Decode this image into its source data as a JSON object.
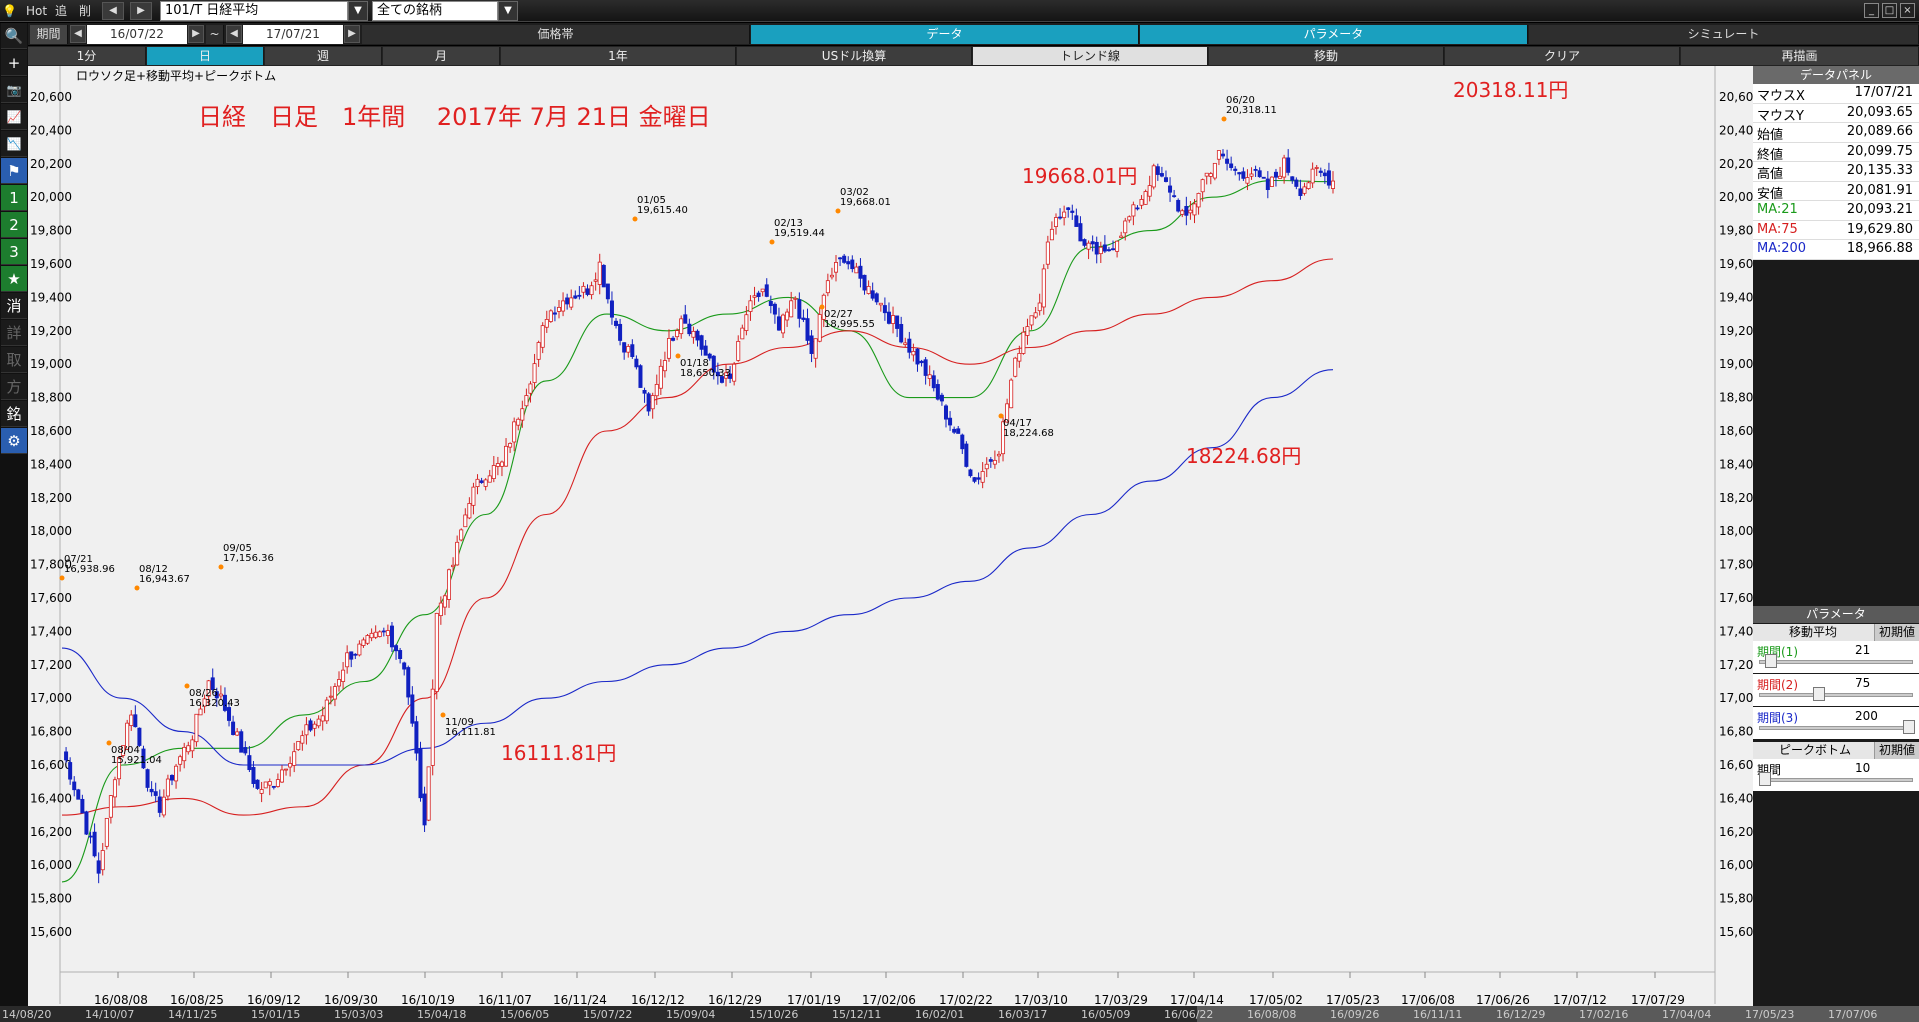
{
  "topbar": {
    "hot": "Hot",
    "nav1": "追",
    "nav2": "削",
    "symbol": "101/T 日経平均",
    "market": "全ての銘柄"
  },
  "row2": {
    "period_label": "期間",
    "date_from": "16/07/22",
    "tilde": "~",
    "date_to": "17/07/21",
    "tabs": [
      "価格帯",
      "データ",
      "パラメータ",
      "シミュレート"
    ]
  },
  "row3": {
    "cells": [
      "1分",
      "日",
      "週",
      "月",
      "1年",
      "USドル換算",
      "トレンド線",
      "移動",
      "クリア",
      "再描画"
    ]
  },
  "lefttool": {
    "buttons": [
      "🔍",
      "+",
      "📷",
      "📈",
      "📉",
      "⚑",
      "1",
      "2",
      "3",
      "★",
      "消",
      "詳",
      "取",
      "方",
      "銘",
      "⚙"
    ]
  },
  "chart": {
    "label": "ロウソク足+移動平均+ピークボトム",
    "headline": "日経　日足　1年間　 2017年 7月 21日 金曜日",
    "y_ticks": [
      "20,600",
      "20,400",
      "20,200",
      "20,000",
      "19,800",
      "19,600",
      "19,400",
      "19,200",
      "19,000",
      "18,800",
      "18,600",
      "18,400",
      "18,200",
      "18,000",
      "17,800",
      "17,600",
      "17,400",
      "17,200",
      "17,000",
      "16,800",
      "16,600",
      "16,400",
      "16,200",
      "16,000",
      "15,800",
      "15,600"
    ],
    "x_ticks": [
      "16/08/08",
      "16/08/25",
      "16/09/12",
      "16/09/30",
      "16/10/19",
      "16/11/07",
      "16/11/24",
      "16/12/12",
      "16/12/29",
      "17/01/19",
      "17/02/06",
      "17/02/22",
      "17/03/10",
      "17/03/29",
      "17/04/14",
      "17/05/02",
      "17/05/23",
      "17/06/08",
      "17/06/26",
      "17/07/12",
      "17/07/29"
    ],
    "peaks": [
      {
        "date": "07/21",
        "value": "16,938.96"
      },
      {
        "date": "08/04",
        "value": "15,921.04"
      },
      {
        "date": "08/12",
        "value": "16,943.67"
      },
      {
        "date": "08/26",
        "value": "16,320.43"
      },
      {
        "date": "09/05",
        "value": "17,156.36"
      },
      {
        "date": "11/09",
        "value": "16,111.81"
      },
      {
        "date": "01/05",
        "value": "19,615.40"
      },
      {
        "date": "01/18",
        "value": "18,650.33"
      },
      {
        "date": "02/13",
        "value": "19,519.44"
      },
      {
        "date": "02/27",
        "value": "18,995.55"
      },
      {
        "date": "03/02",
        "value": "19,668.01"
      },
      {
        "date": "04/17",
        "value": "18,224.68"
      },
      {
        "date": "06/20",
        "value": "20,318.11"
      }
    ],
    "big_labels": [
      "20318.11円",
      "19668.01円",
      "18224.68円",
      "16111.81円"
    ],
    "colors": {
      "up": "#d62020",
      "down": "#1020c0",
      "ma21": "#1a9a1a",
      "ma75": "#d62020",
      "ma200": "#1a28c8",
      "peak_dot": "#ff8800"
    }
  },
  "chart_data": {
    "type": "line",
    "title": "日経　日足　1年間　 2017年 7月 21日 金曜日",
    "ylim": [
      15500,
      20700
    ],
    "series": [
      {
        "name": "MA:21",
        "values": [
          15900,
          16600,
          16700,
          16700,
          16900,
          17100,
          17500,
          18100,
          18900,
          19300,
          19200,
          19300,
          19400,
          19200,
          18800,
          18800,
          19200,
          19700,
          19800,
          20000,
          20100,
          20093
        ]
      },
      {
        "name": "MA:75",
        "values": [
          16300,
          16350,
          16400,
          16300,
          16350,
          16600,
          17000,
          17600,
          18100,
          18600,
          18800,
          19000,
          19100,
          19200,
          19100,
          19000,
          19100,
          19200,
          19300,
          19400,
          19500,
          19630
        ]
      },
      {
        "name": "MA:200",
        "values": [
          17300,
          17000,
          16800,
          16600,
          16600,
          16600,
          16700,
          16850,
          17000,
          17100,
          17200,
          17300,
          17400,
          17500,
          17600,
          17700,
          17900,
          18100,
          18300,
          18500,
          18800,
          18967
        ]
      }
    ]
  },
  "data_panel": {
    "title": "データパネル",
    "rows": [
      {
        "k": "マウスX",
        "v": "17/07/21"
      },
      {
        "k": "マウスY",
        "v": "20,093.65"
      },
      {
        "k": "始値",
        "v": "20,089.66"
      },
      {
        "k": "終値",
        "v": "20,099.75"
      },
      {
        "k": "高値",
        "v": "20,135.33"
      },
      {
        "k": "安値",
        "v": "20,081.91"
      },
      {
        "k": "MA:21",
        "v": "20,093.21"
      },
      {
        "k": "MA:75",
        "v": "19,629.80"
      },
      {
        "k": "MA:200",
        "v": "18,966.88"
      }
    ]
  },
  "param_panel": {
    "title": "パラメータ",
    "ma_head": "移動平均",
    "reset": "初期値",
    "p1_label": "期間(1)",
    "p1_value": "21",
    "p2_label": "期間(2)",
    "p2_value": "75",
    "p3_label": "期間(3)",
    "p3_value": "200",
    "pb_head": "ピークボトム",
    "pb_label": "期間",
    "pb_value": "10"
  },
  "bottom_strip": {
    "dates": [
      "14/08/20",
      "14/10/07",
      "14/11/25",
      "15/01/15",
      "15/03/03",
      "15/04/18",
      "15/06/05",
      "15/07/22",
      "15/09/04",
      "15/10/26",
      "15/12/11",
      "16/02/01",
      "16/03/17",
      "16/05/09",
      "16/06/22",
      "16/08/08",
      "16/09/26",
      "16/11/11",
      "16/12/29",
      "17/02/16",
      "17/04/04",
      "17/05/23",
      "17/07/06"
    ]
  }
}
